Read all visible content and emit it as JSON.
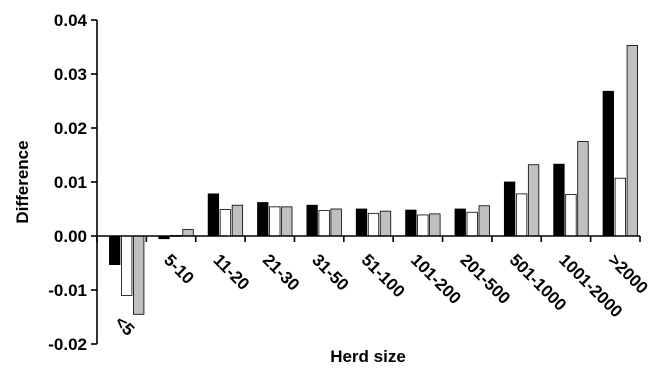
{
  "chart_data": {
    "type": "bar",
    "title": "",
    "xlabel": "Herd size",
    "ylabel": "Difference",
    "ylim": [
      -0.02,
      0.04
    ],
    "yticks": [
      "-0.02",
      "-0.01",
      "0.00",
      "0.01",
      "0.02",
      "0.03",
      "0.04"
    ],
    "grid": false,
    "legend": "none",
    "categories": [
      "<5",
      "5-10",
      "11-20",
      "21-30",
      "31-50",
      "51-100",
      "101-200",
      "201-500",
      "501-1000",
      "1001-2000",
      ">2000"
    ],
    "series": [
      {
        "color": "#000000",
        "values": [
          -0.0053,
          -0.0005,
          0.0078,
          0.0062,
          0.0057,
          0.005,
          0.0048,
          0.005,
          0.01,
          0.0133,
          0.0268
        ]
      },
      {
        "color": "#ffffff",
        "values": [
          -0.011,
          0.0001,
          0.0049,
          0.0054,
          0.0047,
          0.0042,
          0.0039,
          0.0044,
          0.0078,
          0.0077,
          0.0107
        ]
      },
      {
        "color": "#c0c0c0",
        "values": [
          -0.0145,
          0.0012,
          0.0057,
          0.0054,
          0.005,
          0.0046,
          0.0041,
          0.0056,
          0.0132,
          0.0175,
          0.0353
        ]
      }
    ]
  }
}
